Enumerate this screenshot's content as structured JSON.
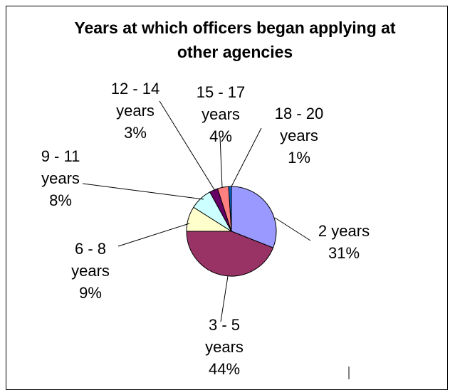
{
  "chart_data": {
    "type": "pie",
    "title": "Years at which officers began applying at other agencies",
    "categories": [
      "2 years",
      "3 - 5 years",
      "6 - 8 years",
      "9 - 11 years",
      "12 - 14 years",
      "15 - 17 years",
      "18 - 20 years"
    ],
    "values": [
      31,
      44,
      9,
      8,
      3,
      4,
      1
    ],
    "value_labels": [
      "31%",
      "44%",
      "9%",
      "8%",
      "3%",
      "4%",
      "1%"
    ],
    "colors": [
      "#9999ff",
      "#993366",
      "#ffffcc",
      "#ccffff",
      "#660066",
      "#ff8080",
      "#0066cc"
    ]
  }
}
